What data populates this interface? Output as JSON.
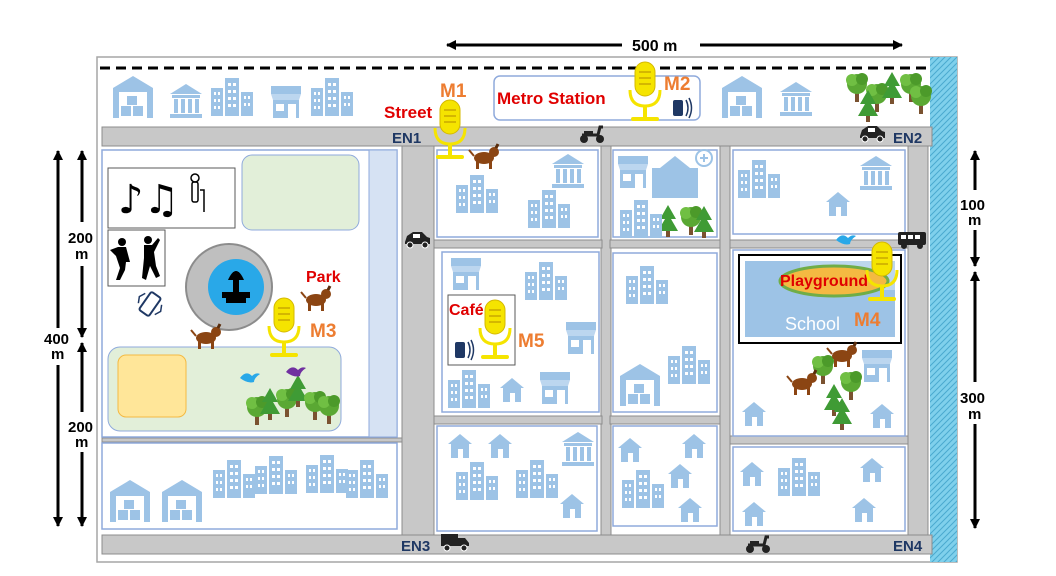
{
  "scale": {
    "top": "500 m",
    "left_total": "400",
    "left_total_unit": "m",
    "left_upper": "200",
    "left_upper_unit": "m",
    "left_lower": "200",
    "left_lower_unit": "m",
    "right_upper": "100",
    "right_upper_unit": "m",
    "right_lower": "300",
    "right_lower_unit": "m"
  },
  "end_nodes": {
    "en1": "EN1",
    "en2": "EN2",
    "en3": "EN3",
    "en4": "EN4"
  },
  "places": {
    "street": "Street",
    "metro_station": "Metro Station",
    "park": "Park",
    "cafe": "Café",
    "playground": "Playground",
    "school": "School"
  },
  "microphones": {
    "m1": "M1",
    "m2": "M2",
    "m3": "M3",
    "m4": "M4",
    "m5": "M5"
  },
  "colors": {
    "road": "#c8c8c8",
    "building": "#9dc3e6",
    "park_green": "#e2efd9",
    "playground_fill": "#f4b942",
    "mic": "#f5e400",
    "place_label": "#e00000",
    "mic_label": "#ed7d31",
    "river": "#8ed3ec"
  }
}
